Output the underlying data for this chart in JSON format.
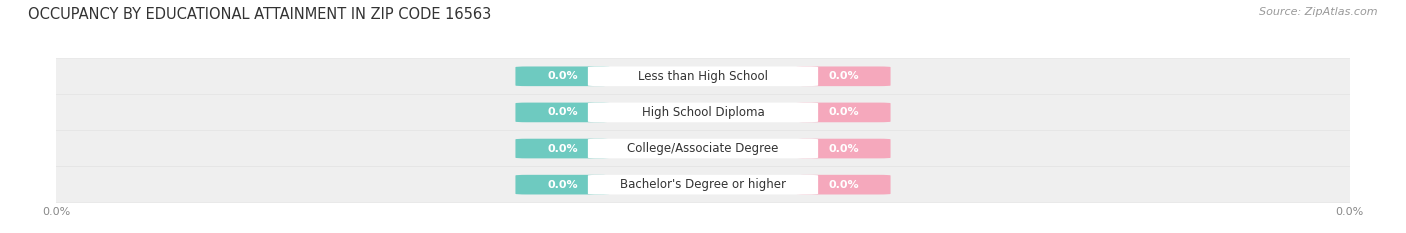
{
  "title": "OCCUPANCY BY EDUCATIONAL ATTAINMENT IN ZIP CODE 16563",
  "source": "Source: ZipAtlas.com",
  "categories": [
    "Less than High School",
    "High School Diploma",
    "College/Associate Degree",
    "Bachelor's Degree or higher"
  ],
  "owner_values": [
    0.0,
    0.0,
    0.0,
    0.0
  ],
  "renter_values": [
    0.0,
    0.0,
    0.0,
    0.0
  ],
  "owner_color": "#6ECAC0",
  "renter_color": "#F5A8BC",
  "row_bg_color": "#EFEFEF",
  "row_sep_color": "#FFFFFF",
  "title_fontsize": 10.5,
  "source_fontsize": 8,
  "cat_fontsize": 8.5,
  "val_fontsize": 8,
  "tick_fontsize": 8,
  "legend_fontsize": 8.5,
  "background_color": "#FFFFFF",
  "tick_color": "#888888",
  "cat_color": "#333333",
  "val_color": "#FFFFFF",
  "title_color": "#333333",
  "source_color": "#999999"
}
